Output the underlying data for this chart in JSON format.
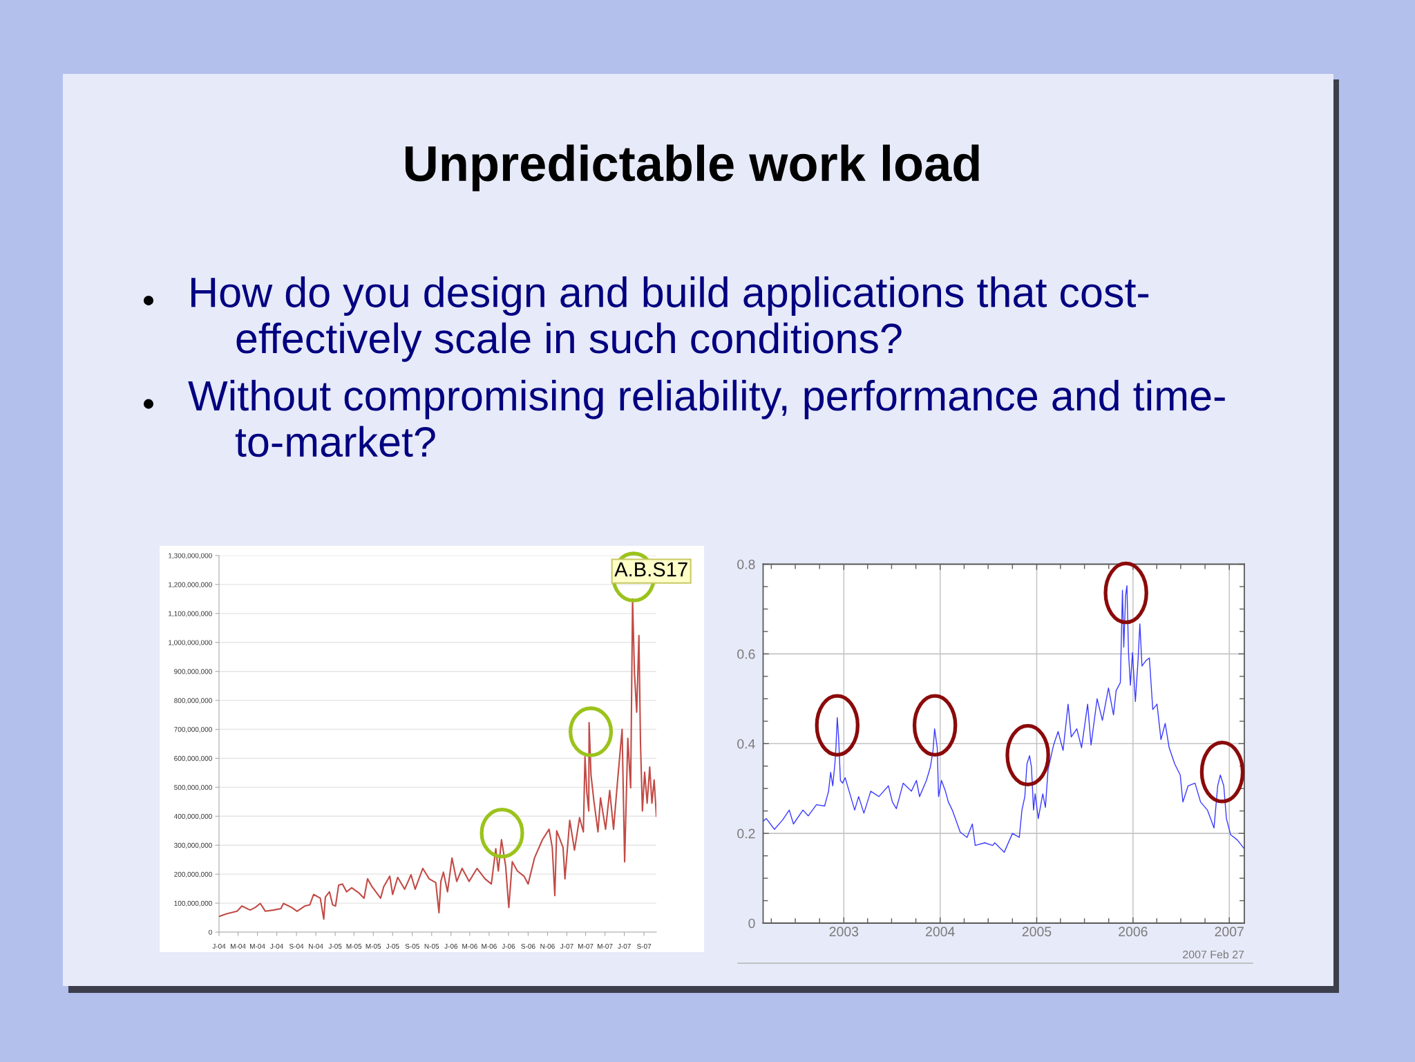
{
  "chart_data": [
    {
      "type": "other",
      "title": "Unpredictable work load",
      "annotations": [
        "How do you design and build applications that cost-effectively scale in such conditions?",
        "Without compromising reliability, performance and time-to-market?"
      ]
    },
    {
      "type": "line",
      "x": [
        "2004-01-01",
        "2004-01-25",
        "2004-02-27",
        "2004-03-13",
        "2004-04-08",
        "2004-04-24",
        "2004-05-10",
        "2004-05-26",
        "2004-06-20",
        "2004-07-14",
        "2004-07-22",
        "2004-08-17",
        "2004-09-03",
        "2004-09-27",
        "2004-10-13",
        "2004-10-25",
        "2004-11-15",
        "2004-11-26",
        "2004-12-01",
        "2004-12-14",
        "2004-12-24",
        "2005-01-02",
        "2005-01-12",
        "2005-01-24",
        "2005-02-06",
        "2005-02-22",
        "2005-03-17",
        "2005-04-02",
        "2005-04-13",
        "2005-04-27",
        "2005-05-24",
        "2005-06-03",
        "2005-06-22",
        "2005-07-01",
        "2005-07-17",
        "2005-08-08",
        "2005-08-28",
        "2005-09-10",
        "2005-10-04",
        "2005-10-24",
        "2005-11-14",
        "2005-11-24",
        "2005-11-30",
        "2005-12-08",
        "2005-12-21",
        "2006-01-04",
        "2006-01-19",
        "2006-02-05",
        "2006-02-27",
        "2006-03-24",
        "2006-04-18",
        "2006-05-08",
        "2006-05-22",
        "2006-05-30",
        "2006-06-09",
        "2006-06-22",
        "2006-07-02",
        "2006-07-13",
        "2006-07-29",
        "2006-08-19",
        "2006-09-01",
        "2006-09-21",
        "2006-10-16",
        "2006-11-06",
        "2006-11-16",
        "2006-11-24",
        "2006-11-30",
        "2006-12-20",
        "2006-12-26",
        "2007-01-10",
        "2007-01-25",
        "2007-02-10",
        "2007-02-22",
        "2007-02-27",
        "2007-03-05",
        "2007-03-11",
        "2007-03-12",
        "2007-03-18",
        "2007-03-27",
        "2007-04-09",
        "2007-04-17",
        "2007-05-03",
        "2007-05-16",
        "2007-05-28",
        "2007-06-10",
        "2007-06-24",
        "2007-07-02",
        "2007-07-12",
        "2007-07-21",
        "2007-07-27",
        "2007-08-02",
        "2007-08-09",
        "2007-08-16",
        "2007-08-21",
        "2007-08-27",
        "2007-09-03",
        "2007-09-11",
        "2007-09-19",
        "2007-09-26",
        "2007-10-03",
        "2007-10-10"
      ],
      "series": [
        {
          "color": "#c24a45",
          "values": [
            54000000,
            63000000,
            72000000,
            90000000,
            76000000,
            85000000,
            99000000,
            72000000,
            76000000,
            81000000,
            99000000,
            85000000,
            72000000,
            90000000,
            94000000,
            130000000,
            117000000,
            45000000,
            121000000,
            139000000,
            94000000,
            90000000,
            162000000,
            166000000,
            139000000,
            153000000,
            135000000,
            117000000,
            184000000,
            157000000,
            117000000,
            157000000,
            193000000,
            130000000,
            189000000,
            148000000,
            198000000,
            148000000,
            220000000,
            184000000,
            171000000,
            67000000,
            175000000,
            207000000,
            139000000,
            256000000,
            175000000,
            220000000,
            175000000,
            220000000,
            184000000,
            166000000,
            288000000,
            211000000,
            319000000,
            229000000,
            85000000,
            243000000,
            211000000,
            193000000,
            166000000,
            256000000,
            319000000,
            355000000,
            292000000,
            126000000,
            350000000,
            292000000,
            184000000,
            386000000,
            283000000,
            395000000,
            346000000,
            606000000,
            481000000,
            418000000,
            723000000,
            543000000,
            454000000,
            346000000,
            463000000,
            355000000,
            489000000,
            355000000,
            525000000,
            700000000,
            243000000,
            669000000,
            498000000,
            1150000000,
            894000000,
            759000000,
            1024000000,
            651000000,
            418000000,
            552000000,
            445000000,
            570000000,
            445000000,
            525000000,
            400000000
          ]
        }
      ],
      "xlim": [
        "2004-01-01",
        "2007-10-10"
      ],
      "xticks": [
        {
          "value": "2004-01-01",
          "label": "J-04"
        },
        {
          "value": "2004-03-01",
          "label": "M-04"
        },
        {
          "value": "2004-05-01",
          "label": "M-04"
        },
        {
          "value": "2004-07-01",
          "label": "J-04"
        },
        {
          "value": "2004-09-01",
          "label": "S-04"
        },
        {
          "value": "2004-11-01",
          "label": "N-04"
        },
        {
          "value": "2005-01-01",
          "label": "J-05"
        },
        {
          "value": "2005-03-01",
          "label": "M-05"
        },
        {
          "value": "2005-05-01",
          "label": "M-05"
        },
        {
          "value": "2005-07-01",
          "label": "J-05"
        },
        {
          "value": "2005-09-01",
          "label": "S-05"
        },
        {
          "value": "2005-11-01",
          "label": "N-05"
        },
        {
          "value": "2006-01-01",
          "label": "J-06"
        },
        {
          "value": "2006-03-01",
          "label": "M-06"
        },
        {
          "value": "2006-05-01",
          "label": "M-06"
        },
        {
          "value": "2006-07-01",
          "label": "J-06"
        },
        {
          "value": "2006-09-01",
          "label": "S-06"
        },
        {
          "value": "2006-11-01",
          "label": "N-06"
        },
        {
          "value": "2007-01-01",
          "label": "J-07"
        },
        {
          "value": "2007-03-01",
          "label": "M-07"
        },
        {
          "value": "2007-05-01",
          "label": "M-07"
        },
        {
          "value": "2007-07-01",
          "label": "J-07"
        },
        {
          "value": "2007-09-01",
          "label": "S-07"
        }
      ],
      "ylim": [
        0,
        1300000000
      ],
      "yticks": [
        0,
        {
          "value": 100000000,
          "label": "100,000,000"
        },
        {
          "value": 200000000,
          "label": "200,000,000"
        },
        {
          "value": 300000000,
          "label": "300,000,000"
        },
        {
          "value": 400000000,
          "label": "400,000,000"
        },
        {
          "value": 500000000,
          "label": "500,000,000"
        },
        {
          "value": 600000000,
          "label": "600,000,000"
        },
        {
          "value": 700000000,
          "label": "700,000,000"
        },
        {
          "value": 800000000,
          "label": "800,000,000"
        },
        {
          "value": 900000000,
          "label": "900,000,000"
        },
        {
          "value": 1000000000,
          "label": "1,000,000,000"
        },
        {
          "value": 1100000000,
          "label": "1,100,000,000"
        },
        {
          "value": 1200000000,
          "label": "1,200,000,000"
        },
        {
          "value": 1300000000,
          "label": "1,300,000,000"
        }
      ],
      "grid": "y",
      "annotations": [
        {
          "text": "A.B.S17",
          "x": "2007-07-27",
          "y": 1150000000
        }
      ]
    },
    {
      "type": "line",
      "x": [
        "2002-03-01",
        "2002-03-13",
        "2002-04-13",
        "2002-05-14",
        "2002-06-08",
        "2002-06-24",
        "2002-07-30",
        "2002-08-19",
        "2002-09-19",
        "2002-10-20",
        "2002-11-04",
        "2002-11-12",
        "2002-11-20",
        "2002-11-28",
        "2002-12-02",
        "2002-12-07",
        "2002-12-12",
        "2002-12-19",
        "2002-12-27",
        "2003-01-06",
        "2003-01-21",
        "2003-02-11",
        "2003-02-26",
        "2003-03-18",
        "2003-04-13",
        "2003-05-14",
        "2003-06-19",
        "2003-07-04",
        "2003-07-19",
        "2003-08-14",
        "2003-09-14",
        "2003-10-03",
        "2003-10-15",
        "2003-11-10",
        "2003-11-25",
        "2003-12-05",
        "2003-12-11",
        "2003-12-21",
        "2003-12-26",
        "2004-01-06",
        "2004-01-21",
        "2004-02-01",
        "2004-02-16",
        "2004-03-17",
        "2004-04-12",
        "2004-05-02",
        "2004-05-13",
        "2004-06-18",
        "2004-07-18",
        "2004-07-26",
        "2004-08-31",
        "2004-10-01",
        "2004-10-27",
        "2004-11-06",
        "2004-11-17",
        "2004-11-25",
        "2004-12-05",
        "2004-12-12",
        "2004-12-20",
        "2004-12-26",
        "2005-01-07",
        "2005-01-24",
        "2005-02-03",
        "2005-02-13",
        "2005-03-06",
        "2005-03-23",
        "2005-04-11",
        "2005-04-30",
        "2005-05-12",
        "2005-06-02",
        "2005-06-20",
        "2005-07-13",
        "2005-07-26",
        "2005-08-18",
        "2005-09-07",
        "2005-09-30",
        "2005-10-19",
        "2005-10-29",
        "2005-11-14",
        "2005-11-22",
        "2005-11-27",
        "2005-12-04",
        "2005-12-09",
        "2005-12-15",
        "2005-12-22",
        "2005-12-30",
        "2006-01-10",
        "2006-01-20",
        "2006-01-27",
        "2006-02-04",
        "2006-02-19",
        "2006-03-04",
        "2006-03-17",
        "2006-04-02",
        "2006-04-17",
        "2006-05-03",
        "2006-05-18",
        "2006-06-08",
        "2006-06-29",
        "2006-07-09",
        "2006-07-29",
        "2006-08-24",
        "2006-09-14",
        "2006-10-10",
        "2006-11-04",
        "2006-11-18",
        "2006-11-28",
        "2006-12-11",
        "2006-12-21",
        "2007-01-06",
        "2007-02-01",
        "2007-02-25"
      ],
      "series": [
        {
          "color": "#3a3aff",
          "values": [
            0.227,
            0.233,
            0.209,
            0.23,
            0.252,
            0.221,
            0.252,
            0.239,
            0.264,
            0.261,
            0.294,
            0.336,
            0.306,
            0.355,
            0.391,
            0.458,
            0.415,
            0.318,
            0.312,
            0.324,
            0.294,
            0.252,
            0.282,
            0.245,
            0.294,
            0.282,
            0.306,
            0.27,
            0.255,
            0.312,
            0.294,
            0.318,
            0.282,
            0.318,
            0.348,
            0.385,
            0.433,
            0.391,
            0.282,
            0.318,
            0.294,
            0.27,
            0.252,
            0.203,
            0.191,
            0.221,
            0.173,
            0.179,
            0.173,
            0.179,
            0.158,
            0.2,
            0.191,
            0.252,
            0.282,
            0.355,
            0.373,
            0.348,
            0.252,
            0.288,
            0.233,
            0.288,
            0.258,
            0.342,
            0.397,
            0.427,
            0.385,
            0.488,
            0.415,
            0.433,
            0.391,
            0.488,
            0.397,
            0.5,
            0.452,
            0.524,
            0.464,
            0.518,
            0.536,
            0.742,
            0.615,
            0.73,
            0.752,
            0.603,
            0.53,
            0.603,
            0.494,
            0.585,
            0.667,
            0.573,
            0.585,
            0.591,
            0.476,
            0.488,
            0.409,
            0.445,
            0.391,
            0.355,
            0.33,
            0.27,
            0.306,
            0.312,
            0.27,
            0.252,
            0.212,
            0.306,
            0.33,
            0.306,
            0.233,
            0.197,
            0.185,
            0.167
          ]
        }
      ],
      "xlim": [
        "2002-03-01",
        "2007-02-27"
      ],
      "xticks": [
        {
          "value": "2002-04-01",
          "label": null
        },
        {
          "value": "2002-07-01",
          "label": null
        },
        {
          "value": "2002-10-01",
          "label": null
        },
        {
          "value": "2003-01-01",
          "label": "2003"
        },
        {
          "value": "2003-04-01",
          "label": null
        },
        {
          "value": "2003-07-01",
          "label": null
        },
        {
          "value": "2003-10-01",
          "label": null
        },
        {
          "value": "2004-01-01",
          "label": "2004"
        },
        {
          "value": "2004-04-01",
          "label": null
        },
        {
          "value": "2004-07-01",
          "label": null
        },
        {
          "value": "2004-10-01",
          "label": null
        },
        {
          "value": "2005-01-01",
          "label": "2005"
        },
        {
          "value": "2005-04-01",
          "label": null
        },
        {
          "value": "2005-07-01",
          "label": null
        },
        {
          "value": "2005-10-01",
          "label": null
        },
        {
          "value": "2006-01-01",
          "label": "2006"
        },
        {
          "value": "2006-04-01",
          "label": null
        },
        {
          "value": "2006-07-01",
          "label": null
        },
        {
          "value": "2006-10-01",
          "label": null
        },
        {
          "value": "2007-01-01",
          "label": "2007"
        }
      ],
      "ylim": [
        0,
        0.8
      ],
      "yticks": [
        0,
        {
          "value": 0.05,
          "label": null
        },
        {
          "value": 0.1,
          "label": null
        },
        {
          "value": 0.15,
          "label": null
        },
        0.2,
        {
          "value": 0.25,
          "label": null
        },
        {
          "value": 0.3,
          "label": null
        },
        {
          "value": 0.35,
          "label": null
        },
        0.4,
        {
          "value": 0.45,
          "label": null
        },
        {
          "value": 0.5,
          "label": null
        },
        {
          "value": 0.55,
          "label": null
        },
        0.6,
        {
          "value": 0.65,
          "label": null
        },
        {
          "value": 0.7,
          "label": null
        },
        {
          "value": 0.75,
          "label": null
        },
        0.8
      ],
      "grid": true,
      "annotations": [
        "2007 Feb 27"
      ]
    }
  ]
}
